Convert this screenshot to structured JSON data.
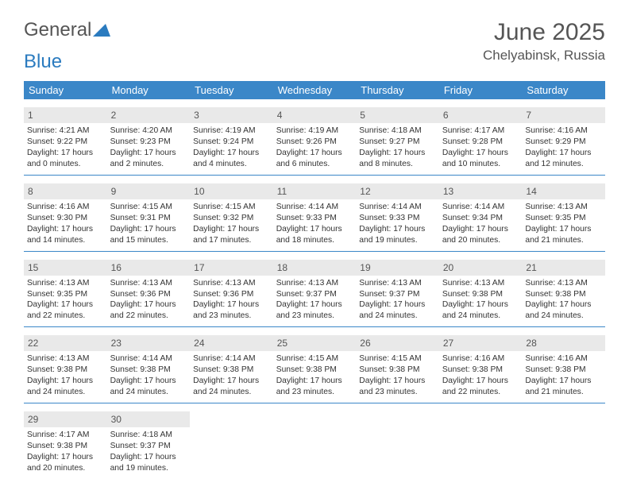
{
  "logo": {
    "text1": "General",
    "text2": "Blue"
  },
  "title": "June 2025",
  "location": "Chelyabinsk, Russia",
  "colors": {
    "header_bg": "#3b87c8",
    "header_text": "#ffffff",
    "daynum_bg": "#e9e9e9",
    "border": "#3b87c8",
    "text": "#333333"
  },
  "day_headers": [
    "Sunday",
    "Monday",
    "Tuesday",
    "Wednesday",
    "Thursday",
    "Friday",
    "Saturday"
  ],
  "weeks": [
    [
      {
        "n": "1",
        "sr": "Sunrise: 4:21 AM",
        "ss": "Sunset: 9:22 PM",
        "dl": "Daylight: 17 hours and 0 minutes."
      },
      {
        "n": "2",
        "sr": "Sunrise: 4:20 AM",
        "ss": "Sunset: 9:23 PM",
        "dl": "Daylight: 17 hours and 2 minutes."
      },
      {
        "n": "3",
        "sr": "Sunrise: 4:19 AM",
        "ss": "Sunset: 9:24 PM",
        "dl": "Daylight: 17 hours and 4 minutes."
      },
      {
        "n": "4",
        "sr": "Sunrise: 4:19 AM",
        "ss": "Sunset: 9:26 PM",
        "dl": "Daylight: 17 hours and 6 minutes."
      },
      {
        "n": "5",
        "sr": "Sunrise: 4:18 AM",
        "ss": "Sunset: 9:27 PM",
        "dl": "Daylight: 17 hours and 8 minutes."
      },
      {
        "n": "6",
        "sr": "Sunrise: 4:17 AM",
        "ss": "Sunset: 9:28 PM",
        "dl": "Daylight: 17 hours and 10 minutes."
      },
      {
        "n": "7",
        "sr": "Sunrise: 4:16 AM",
        "ss": "Sunset: 9:29 PM",
        "dl": "Daylight: 17 hours and 12 minutes."
      }
    ],
    [
      {
        "n": "8",
        "sr": "Sunrise: 4:16 AM",
        "ss": "Sunset: 9:30 PM",
        "dl": "Daylight: 17 hours and 14 minutes."
      },
      {
        "n": "9",
        "sr": "Sunrise: 4:15 AM",
        "ss": "Sunset: 9:31 PM",
        "dl": "Daylight: 17 hours and 15 minutes."
      },
      {
        "n": "10",
        "sr": "Sunrise: 4:15 AM",
        "ss": "Sunset: 9:32 PM",
        "dl": "Daylight: 17 hours and 17 minutes."
      },
      {
        "n": "11",
        "sr": "Sunrise: 4:14 AM",
        "ss": "Sunset: 9:33 PM",
        "dl": "Daylight: 17 hours and 18 minutes."
      },
      {
        "n": "12",
        "sr": "Sunrise: 4:14 AM",
        "ss": "Sunset: 9:33 PM",
        "dl": "Daylight: 17 hours and 19 minutes."
      },
      {
        "n": "13",
        "sr": "Sunrise: 4:14 AM",
        "ss": "Sunset: 9:34 PM",
        "dl": "Daylight: 17 hours and 20 minutes."
      },
      {
        "n": "14",
        "sr": "Sunrise: 4:13 AM",
        "ss": "Sunset: 9:35 PM",
        "dl": "Daylight: 17 hours and 21 minutes."
      }
    ],
    [
      {
        "n": "15",
        "sr": "Sunrise: 4:13 AM",
        "ss": "Sunset: 9:35 PM",
        "dl": "Daylight: 17 hours and 22 minutes."
      },
      {
        "n": "16",
        "sr": "Sunrise: 4:13 AM",
        "ss": "Sunset: 9:36 PM",
        "dl": "Daylight: 17 hours and 22 minutes."
      },
      {
        "n": "17",
        "sr": "Sunrise: 4:13 AM",
        "ss": "Sunset: 9:36 PM",
        "dl": "Daylight: 17 hours and 23 minutes."
      },
      {
        "n": "18",
        "sr": "Sunrise: 4:13 AM",
        "ss": "Sunset: 9:37 PM",
        "dl": "Daylight: 17 hours and 23 minutes."
      },
      {
        "n": "19",
        "sr": "Sunrise: 4:13 AM",
        "ss": "Sunset: 9:37 PM",
        "dl": "Daylight: 17 hours and 24 minutes."
      },
      {
        "n": "20",
        "sr": "Sunrise: 4:13 AM",
        "ss": "Sunset: 9:38 PM",
        "dl": "Daylight: 17 hours and 24 minutes."
      },
      {
        "n": "21",
        "sr": "Sunrise: 4:13 AM",
        "ss": "Sunset: 9:38 PM",
        "dl": "Daylight: 17 hours and 24 minutes."
      }
    ],
    [
      {
        "n": "22",
        "sr": "Sunrise: 4:13 AM",
        "ss": "Sunset: 9:38 PM",
        "dl": "Daylight: 17 hours and 24 minutes."
      },
      {
        "n": "23",
        "sr": "Sunrise: 4:14 AM",
        "ss": "Sunset: 9:38 PM",
        "dl": "Daylight: 17 hours and 24 minutes."
      },
      {
        "n": "24",
        "sr": "Sunrise: 4:14 AM",
        "ss": "Sunset: 9:38 PM",
        "dl": "Daylight: 17 hours and 24 minutes."
      },
      {
        "n": "25",
        "sr": "Sunrise: 4:15 AM",
        "ss": "Sunset: 9:38 PM",
        "dl": "Daylight: 17 hours and 23 minutes."
      },
      {
        "n": "26",
        "sr": "Sunrise: 4:15 AM",
        "ss": "Sunset: 9:38 PM",
        "dl": "Daylight: 17 hours and 23 minutes."
      },
      {
        "n": "27",
        "sr": "Sunrise: 4:16 AM",
        "ss": "Sunset: 9:38 PM",
        "dl": "Daylight: 17 hours and 22 minutes."
      },
      {
        "n": "28",
        "sr": "Sunrise: 4:16 AM",
        "ss": "Sunset: 9:38 PM",
        "dl": "Daylight: 17 hours and 21 minutes."
      }
    ],
    [
      {
        "n": "29",
        "sr": "Sunrise: 4:17 AM",
        "ss": "Sunset: 9:38 PM",
        "dl": "Daylight: 17 hours and 20 minutes."
      },
      {
        "n": "30",
        "sr": "Sunrise: 4:18 AM",
        "ss": "Sunset: 9:37 PM",
        "dl": "Daylight: 17 hours and 19 minutes."
      },
      {
        "empty": true
      },
      {
        "empty": true
      },
      {
        "empty": true
      },
      {
        "empty": true
      },
      {
        "empty": true
      }
    ]
  ]
}
